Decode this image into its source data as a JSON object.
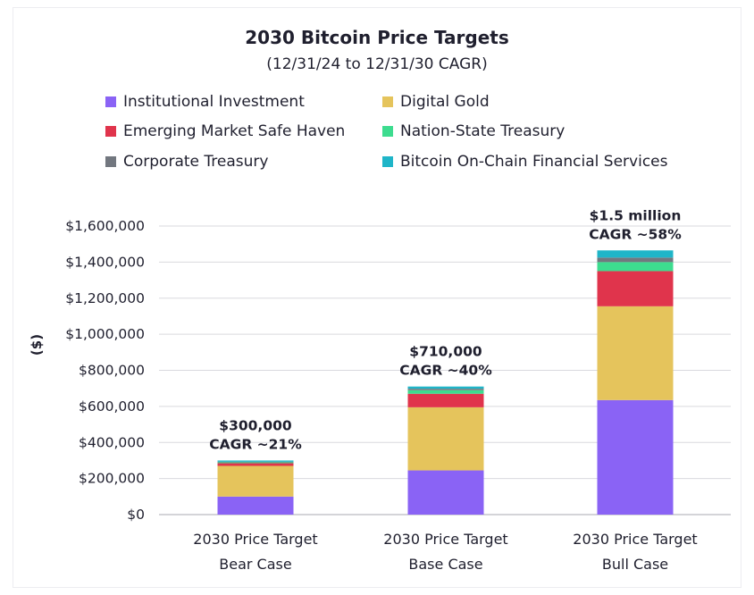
{
  "chart_data": {
    "type": "bar",
    "stacked": true,
    "title": "2030 Bitcoin Price Targets",
    "subtitle": "(12/31/24 to 12/31/30 CAGR)",
    "ylabel": "($)",
    "xlabel": "",
    "ylim": [
      0,
      1600000
    ],
    "yticks": [
      0,
      200000,
      400000,
      600000,
      800000,
      1000000,
      1200000,
      1400000,
      1600000
    ],
    "ytick_labels": [
      "$0",
      "$200,000",
      "$400,000",
      "$600,000",
      "$800,000",
      "$1,000,000",
      "$1,200,000",
      "$1,400,000",
      "$1,600,000"
    ],
    "grid": true,
    "legend_position": "top",
    "categories": [
      [
        "2030 Price Target",
        "Bear Case"
      ],
      [
        "2030 Price Target",
        "Base Case"
      ],
      [
        "2030 Price Target",
        "Bull Case"
      ]
    ],
    "series": [
      {
        "name": "Institutional Investment",
        "color": "#8a63f5",
        "values": [
          100000,
          245000,
          635000
        ]
      },
      {
        "name": "Digital Gold",
        "color": "#e5c45c",
        "values": [
          170000,
          350000,
          520000
        ]
      },
      {
        "name": "Emerging Market Safe Haven",
        "color": "#e0344c",
        "values": [
          15000,
          75000,
          195000
        ]
      },
      {
        "name": "Nation-State Treasury",
        "color": "#3ddc8f",
        "values": [
          5000,
          20000,
          50000
        ]
      },
      {
        "name": "Corporate Treasury",
        "color": "#72777f",
        "values": [
          3000,
          8000,
          25000
        ]
      },
      {
        "name": "Bitcoin On-Chain Financial Services",
        "color": "#1fb5c8",
        "values": [
          7000,
          12000,
          40000
        ]
      }
    ],
    "annotations": [
      {
        "label": "$300,000",
        "sub": "CAGR ~21%"
      },
      {
        "label": "$710,000",
        "sub": "CAGR ~40%"
      },
      {
        "label": "$1.5 million",
        "sub": "CAGR ~58%"
      }
    ]
  }
}
